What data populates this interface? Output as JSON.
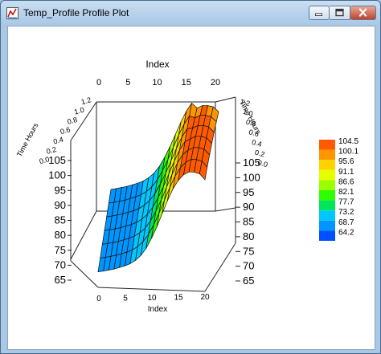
{
  "window": {
    "title": "Temp_Profile Profile Plot",
    "icon": "plot-app-icon",
    "controls": [
      "minimize-icon",
      "maximize-icon",
      "close-icon"
    ]
  },
  "chart_data": {
    "type": "surface",
    "title": "",
    "axes": {
      "index_top_label": "Index",
      "index_bottom_label": "Index",
      "time_left_label": "Time Hours",
      "time_right_label": "Time Hours",
      "index_ticks": [
        "0",
        "5",
        "10",
        "15",
        "20"
      ],
      "time_ticks": [
        "0.0",
        "0.2",
        "0.4",
        "0.6",
        "0.8",
        "1.0",
        "1.2"
      ],
      "value_ticks": [
        "65",
        "70",
        "75",
        "80",
        "85",
        "90",
        "95",
        "100",
        "105"
      ],
      "index_range": [
        0,
        20
      ],
      "time_range": [
        0,
        1.2
      ],
      "value_range": [
        65,
        105
      ]
    },
    "x": [
      0,
      1,
      2,
      3,
      4,
      5,
      6,
      7,
      8,
      9,
      10,
      11,
      12,
      13,
      14,
      15,
      16,
      17,
      18,
      19,
      20
    ],
    "profile_values": [
      69.5,
      69.8,
      70.2,
      70.6,
      71.2,
      71.8,
      72.6,
      73.8,
      75.5,
      78,
      81.5,
      85.5,
      90,
      94.5,
      98.5,
      101.5,
      103.5,
      104.5,
      104.5,
      104,
      102
    ],
    "legend": [
      "104.5",
      "100.1",
      "95.6",
      "91.1",
      "86.6",
      "82.1",
      "77.7",
      "73.2",
      "68.7",
      "64.2"
    ],
    "legend_colors": [
      "#ff5a00",
      "#ff9600",
      "#ffd200",
      "#e6ff00",
      "#9bff00",
      "#2dff00",
      "#00e65a",
      "#00c8ff",
      "#0096ff",
      "#0050ff"
    ],
    "legend_position": "right",
    "grid": false
  }
}
